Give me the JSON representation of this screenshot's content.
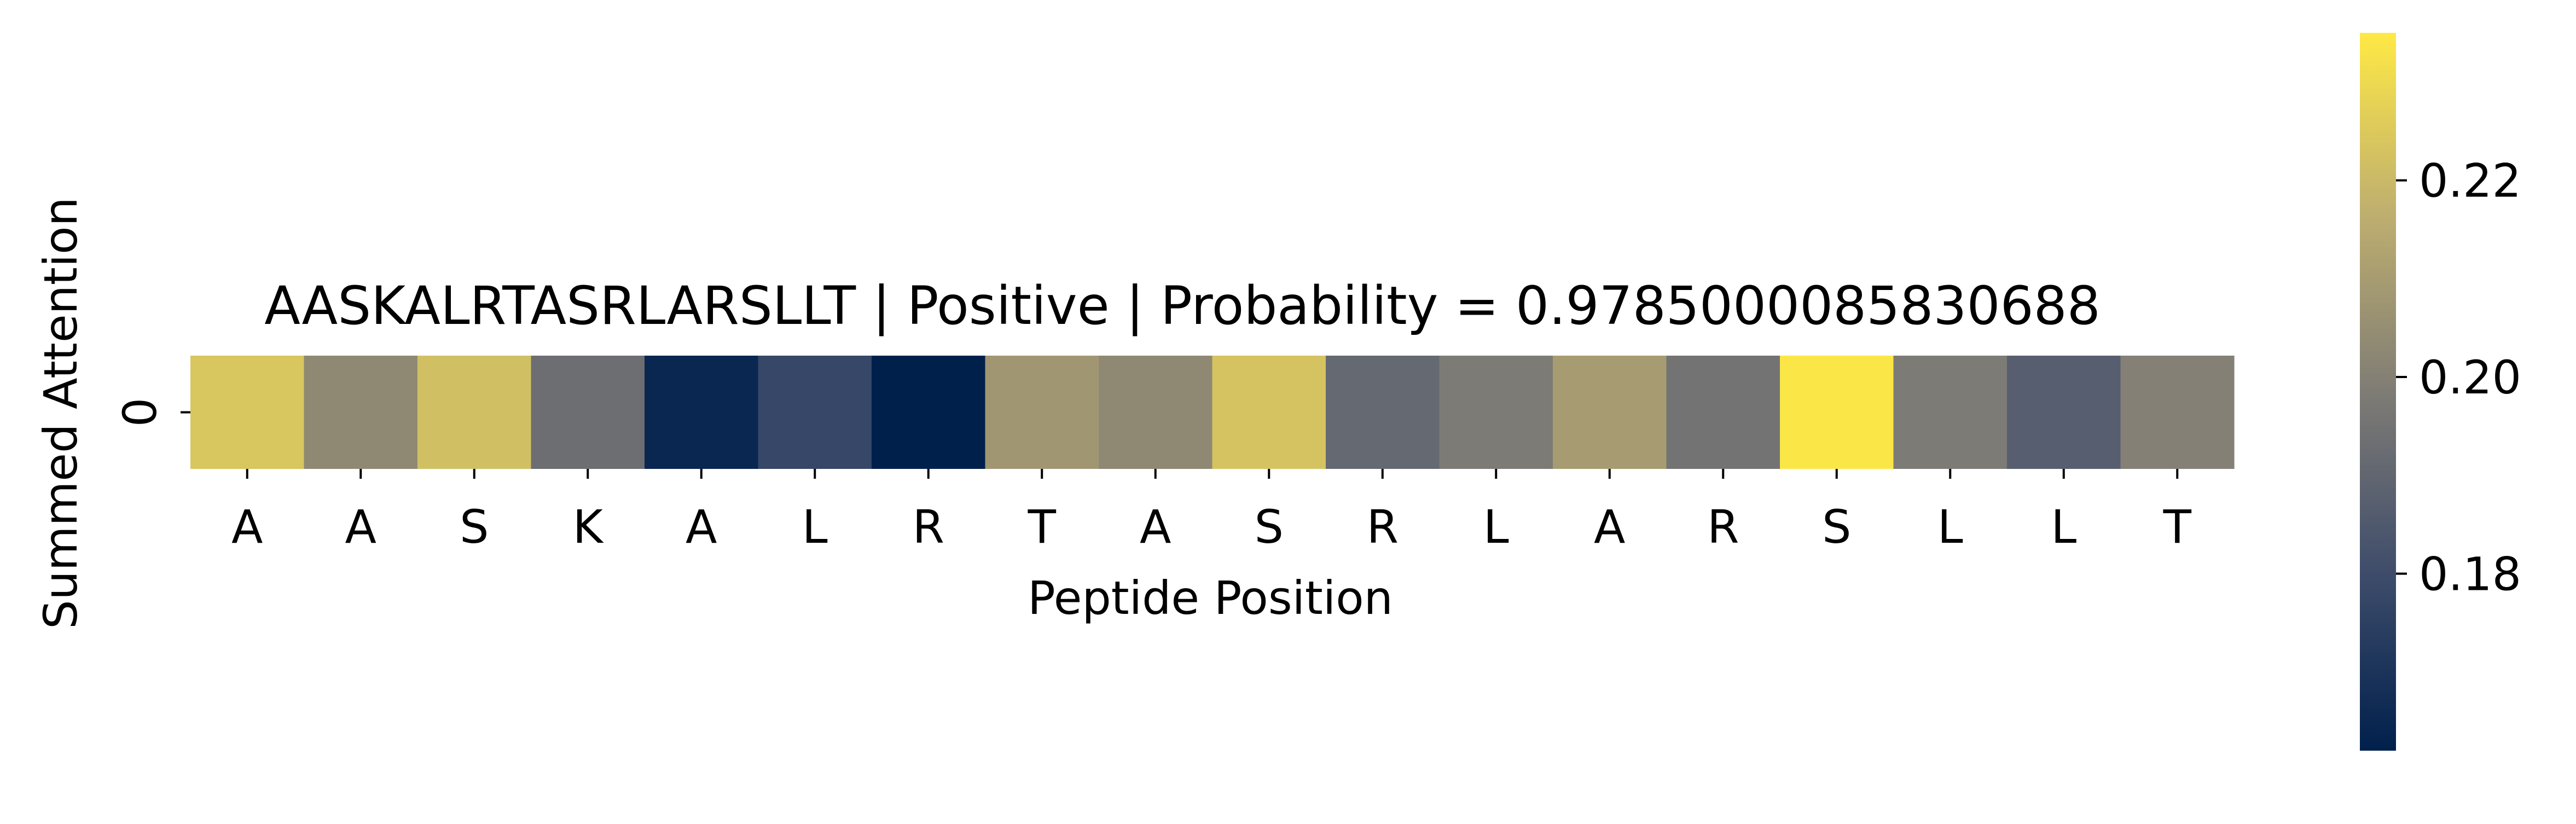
{
  "chart_data": {
    "type": "heatmap",
    "title": "AASKALRTASRLARSLLT | Positive | Probability = 0.9785000085830688",
    "xlabel": "Peptide Position",
    "ylabel": "Summed Attention",
    "x_tick_labels": [
      "A",
      "A",
      "S",
      "K",
      "A",
      "L",
      "R",
      "T",
      "A",
      "S",
      "R",
      "L",
      "A",
      "R",
      "S",
      "L",
      "L",
      "T"
    ],
    "y_tick_labels": [
      "0"
    ],
    "values": [
      [
        0.224,
        0.203,
        0.222,
        0.193,
        0.165,
        0.178,
        0.162,
        0.208,
        0.203,
        0.223,
        0.191,
        0.198,
        0.21,
        0.195,
        0.234,
        0.198,
        0.187,
        0.2
      ]
    ],
    "colormap": "cividis",
    "colorbar": {
      "range": [
        0.162,
        0.235
      ],
      "ticks": [
        0.18,
        0.2,
        0.22
      ],
      "tick_labels": [
        "0.18",
        "0.20",
        "0.22"
      ]
    },
    "grid": false,
    "legend": "none"
  }
}
